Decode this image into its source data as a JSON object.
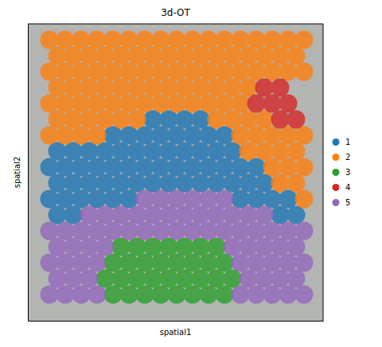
{
  "chart_data": {
    "type": "scatter",
    "title": "3d-OT",
    "x_label": "spatial1",
    "y_label": "spatial2",
    "xlim": [
      0,
      371
    ],
    "ylim": [
      373,
      0
    ],
    "tick_labels": false,
    "legend": "right",
    "series": [
      {
        "name": "1",
        "color": "#1f77b4",
        "x": [
          157,
          177,
          197,
          217,
          107,
          127,
          147,
          167,
          187,
          207,
          227,
          247,
          37,
          57,
          77,
          97,
          117,
          137,
          157,
          177,
          197,
          217,
          237,
          257,
          27,
          47,
          67,
          87,
          107,
          127,
          147,
          167,
          187,
          207,
          227,
          247,
          267,
          287,
          37,
          57,
          77,
          97,
          117,
          137,
          157,
          177,
          197,
          217,
          237,
          257,
          277,
          297,
          27,
          47,
          67,
          87,
          107,
          127,
          267,
          287,
          307,
          327,
          37,
          57,
          317,
          337
        ],
        "values": [
          120,
          120,
          120,
          120,
          140,
          140,
          140,
          140,
          140,
          140,
          140,
          140,
          160,
          160,
          160,
          160,
          160,
          160,
          160,
          160,
          160,
          160,
          160,
          160,
          180,
          180,
          180,
          180,
          180,
          180,
          180,
          180,
          180,
          180,
          180,
          180,
          180,
          180,
          200,
          200,
          200,
          200,
          200,
          200,
          200,
          200,
          200,
          200,
          200,
          200,
          200,
          200,
          220,
          220,
          220,
          220,
          220,
          220,
          220,
          220,
          220,
          220,
          240,
          240,
          240,
          240
        ]
      },
      {
        "name": "2",
        "color": "#ff7f0e",
        "x": [
          27,
          47,
          67,
          87,
          107,
          127,
          147,
          167,
          187,
          207,
          227,
          247,
          267,
          287,
          307,
          327,
          347,
          37,
          57,
          77,
          97,
          117,
          137,
          157,
          177,
          197,
          217,
          237,
          257,
          277,
          297,
          317,
          337,
          27,
          47,
          67,
          87,
          107,
          127,
          147,
          167,
          187,
          207,
          227,
          247,
          267,
          287,
          307,
          327,
          347,
          37,
          57,
          77,
          97,
          117,
          137,
          157,
          177,
          197,
          217,
          237,
          257,
          277,
          27,
          47,
          67,
          87,
          107,
          127,
          147,
          167,
          187,
          207,
          227,
          247,
          267,
          37,
          57,
          77,
          97,
          117,
          137,
          237,
          257,
          277,
          297,
          27,
          47,
          67,
          87,
          267,
          287,
          307,
          327,
          347,
          277,
          297,
          317,
          337,
          307,
          327,
          347,
          317,
          337,
          347
        ],
        "values": [
          20,
          20,
          20,
          20,
          20,
          20,
          20,
          20,
          20,
          20,
          20,
          20,
          20,
          20,
          20,
          20,
          20,
          40,
          40,
          40,
          40,
          40,
          40,
          40,
          40,
          40,
          40,
          40,
          40,
          40,
          40,
          40,
          40,
          60,
          60,
          60,
          60,
          60,
          60,
          60,
          60,
          60,
          60,
          60,
          60,
          60,
          60,
          60,
          60,
          60,
          80,
          80,
          80,
          80,
          80,
          80,
          80,
          80,
          80,
          80,
          80,
          80,
          80,
          100,
          100,
          100,
          100,
          100,
          100,
          100,
          100,
          100,
          100,
          100,
          100,
          100,
          120,
          120,
          120,
          120,
          120,
          120,
          120,
          120,
          120,
          120,
          140,
          140,
          140,
          140,
          140,
          140,
          140,
          140,
          140,
          160,
          160,
          160,
          160,
          180,
          180,
          180,
          200,
          200,
          220
        ]
      },
      {
        "name": "3",
        "color": "#2ca02c",
        "x": [
          117,
          137,
          157,
          177,
          197,
          217,
          237,
          107,
          127,
          147,
          167,
          187,
          207,
          227,
          247,
          97,
          117,
          137,
          157,
          177,
          197,
          217,
          237,
          257,
          107,
          127,
          147,
          167,
          187,
          207,
          227,
          247
        ],
        "values": [
          280,
          280,
          280,
          280,
          280,
          280,
          280,
          300,
          300,
          300,
          300,
          300,
          300,
          300,
          300,
          320,
          320,
          320,
          320,
          320,
          320,
          320,
          320,
          320,
          340,
          340,
          340,
          340,
          340,
          340,
          340,
          340
        ]
      },
      {
        "name": "4",
        "color": "#d62728",
        "x": [
          297,
          317,
          287,
          307,
          327,
          317,
          337
        ],
        "values": [
          80,
          80,
          100,
          100,
          100,
          120,
          120
        ]
      },
      {
        "name": "5",
        "color": "#9467bd",
        "x": [
          147,
          167,
          187,
          207,
          227,
          247,
          77,
          97,
          117,
          137,
          157,
          177,
          197,
          217,
          237,
          257,
          277,
          297,
          27,
          47,
          67,
          87,
          107,
          127,
          147,
          167,
          187,
          207,
          227,
          247,
          267,
          287,
          307,
          327,
          347,
          37,
          57,
          77,
          97,
          257,
          277,
          297,
          317,
          337,
          27,
          47,
          67,
          87,
          267,
          287,
          307,
          327,
          347,
          37,
          57,
          77,
          277,
          297,
          317,
          337,
          27,
          47,
          67,
          87,
          267,
          287,
          307,
          327,
          347
        ],
        "values": [
          220,
          220,
          220,
          220,
          220,
          220,
          240,
          240,
          240,
          240,
          240,
          240,
          240,
          240,
          240,
          240,
          240,
          240,
          260,
          260,
          260,
          260,
          260,
          260,
          260,
          260,
          260,
          260,
          260,
          260,
          260,
          260,
          260,
          260,
          260,
          280,
          280,
          280,
          280,
          280,
          280,
          280,
          280,
          280,
          300,
          300,
          300,
          300,
          300,
          300,
          300,
          300,
          300,
          320,
          320,
          320,
          320,
          320,
          320,
          320,
          340,
          340,
          340,
          340,
          340,
          340,
          340,
          340,
          340
        ]
      }
    ]
  }
}
